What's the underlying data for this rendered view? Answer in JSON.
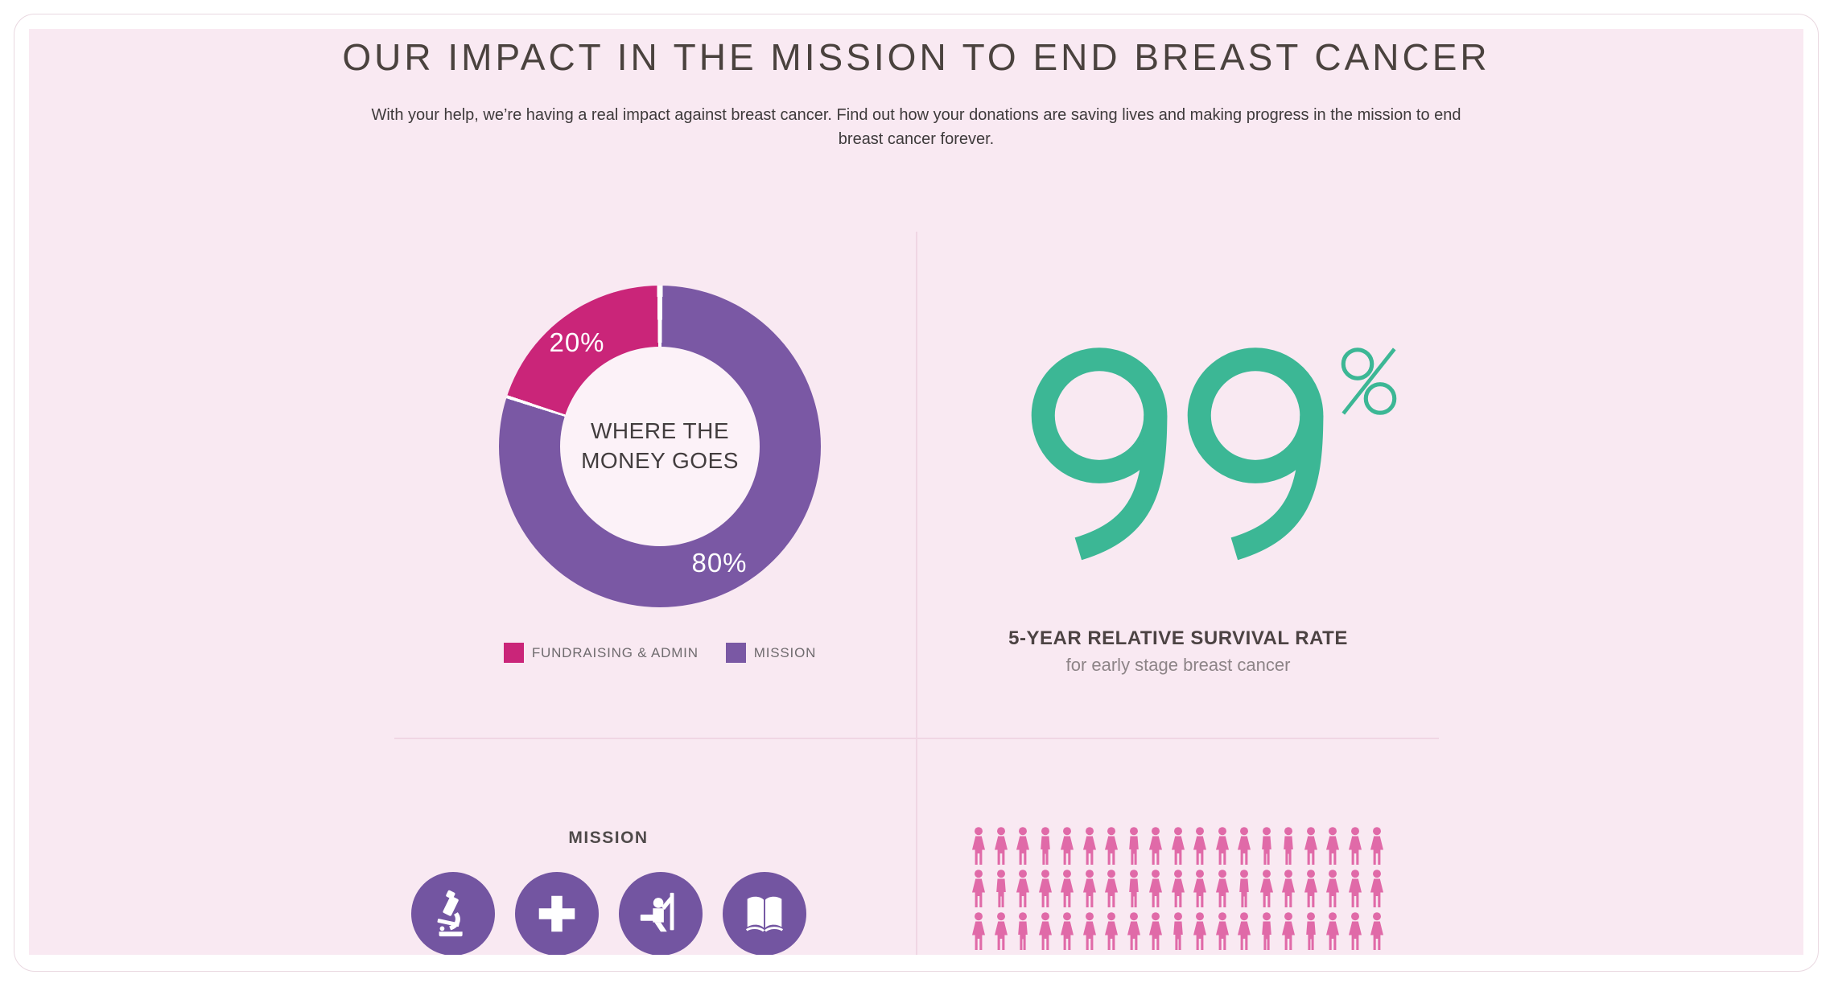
{
  "page": {
    "title": "OUR IMPACT IN THE MISSION TO END BREAST CANCER",
    "subtitle": "With your help, we’re having a real impact against breast cancer. Find out how your donations are saving lives and making progress in the mission to end breast cancer forever."
  },
  "colors": {
    "panel_bg": "#f9e9f2",
    "card_border": "#e9d8e0",
    "divider": "#f0d6e4",
    "donut_fundraising_pink": "#ca2579",
    "donut_mission_purple": "#7a58a4",
    "stat_teal": "#3cb795",
    "mission_circle_purple": "#7355a1",
    "people_pink": "#e06aa8",
    "title_text": "#4a423e"
  },
  "chart_data": [
    {
      "type": "pie",
      "variant": "donut",
      "title": "WHERE THE MONEY GOES",
      "series": [
        {
          "name": "FUNDRAISING & ADMIN",
          "value": 20,
          "display_label": "20%",
          "color": "#ca2579"
        },
        {
          "name": "MISSION",
          "value": 80,
          "display_label": "80%",
          "color": "#7a58a4"
        }
      ],
      "legend_position": "bottom",
      "note": "20% pink slice in upper-left from 288deg to 360deg (clockwise from 12 o'clock), 80% purple fills the rest; thin white gaps at slice boundaries; labels drawn in white inside slices"
    },
    {
      "type": "stat",
      "value": "99",
      "unit": "%",
      "label": "5-YEAR RELATIVE SURVIVAL RATE",
      "sublabel": "for early stage breast cancer",
      "color": "#3cb795"
    },
    {
      "type": "pictograph",
      "icon": "person",
      "color": "#e06aa8",
      "columns": 19,
      "rows_visible": 3,
      "rows": [
        "FFFMFFFMFFFFFMMFFFF",
        "FMFFFFFMFFFFMFFFFFF",
        "FFMFFFFFFMFFFMFMFFF"
      ],
      "note": "grid of pink person figures, F = female figure, M = male figure; graphic continues below the visible panel edge"
    }
  ],
  "mission_section": {
    "heading": "MISSION",
    "icons": [
      {
        "name": "microscope-icon"
      },
      {
        "name": "medical-cross-icon"
      },
      {
        "name": "classroom-icon"
      },
      {
        "name": "open-book-icon"
      }
    ]
  }
}
